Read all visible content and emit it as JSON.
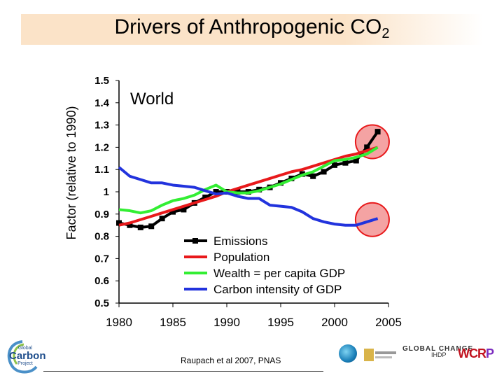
{
  "slide": {
    "title_main": "Drivers of Anthropogenic CO",
    "title_sub": "2",
    "citation": "Raupach et al 2007, PNAS"
  },
  "logos": {
    "gcp_small": "Global",
    "gcp_big": "Carbon",
    "gcp_tag": "Project",
    "global_change": "GLOBAL CHANGE",
    "ihdp": "IHDP",
    "wcrp_left": "WCR",
    "wcrp_right": "P"
  },
  "chart_data": {
    "type": "line",
    "annotation": "World",
    "ylabel": "Factor (relative to 1990)",
    "xlabel": "",
    "xlim": [
      1980,
      2005
    ],
    "ylim": [
      0.5,
      1.5
    ],
    "x_ticks": [
      "1980",
      "1985",
      "1990",
      "1995",
      "2000",
      "2005"
    ],
    "x_tick_values": [
      1980,
      1985,
      1990,
      1995,
      2000,
      2005
    ],
    "y_ticks": [
      "0.5",
      "0.6",
      "0.7",
      "0.8",
      "0.9",
      "1",
      "1.1",
      "1.2",
      "1.3",
      "1.4",
      "1.5"
    ],
    "y_tick_values": [
      0.5,
      0.6,
      0.7,
      0.8,
      0.9,
      1.0,
      1.1,
      1.2,
      1.3,
      1.4,
      1.5
    ],
    "grid": false,
    "legend_position": "lower-right",
    "x": [
      1980,
      1981,
      1982,
      1983,
      1984,
      1985,
      1986,
      1987,
      1988,
      1989,
      1990,
      1991,
      1992,
      1993,
      1994,
      1995,
      1996,
      1997,
      1998,
      1999,
      2000,
      2001,
      2002,
      2003,
      2004
    ],
    "series": [
      {
        "name": "Emissions",
        "color": "#000000",
        "markers": true,
        "values": [
          0.86,
          0.85,
          0.84,
          0.845,
          0.88,
          0.91,
          0.92,
          0.95,
          0.975,
          1.0,
          1.0,
          1.0,
          1.0,
          1.01,
          1.02,
          1.04,
          1.06,
          1.08,
          1.07,
          1.09,
          1.12,
          1.13,
          1.14,
          1.2,
          1.27
        ]
      },
      {
        "name": "Population",
        "color": "#e8191b",
        "markers": false,
        "values": [
          0.85,
          0.86,
          0.875,
          0.89,
          0.905,
          0.92,
          0.935,
          0.95,
          0.965,
          0.98,
          1.0,
          1.015,
          1.03,
          1.045,
          1.06,
          1.075,
          1.09,
          1.1,
          1.115,
          1.13,
          1.145,
          1.16,
          1.17,
          1.185,
          1.2
        ]
      },
      {
        "name": "Wealth = per capita GDP",
        "color": "#33ee33",
        "markers": false,
        "values": [
          0.92,
          0.915,
          0.905,
          0.915,
          0.94,
          0.96,
          0.97,
          0.985,
          1.01,
          1.03,
          1.0,
          0.995,
          0.995,
          1.005,
          1.02,
          1.035,
          1.055,
          1.075,
          1.09,
          1.115,
          1.14,
          1.145,
          1.155,
          1.17,
          1.2
        ]
      },
      {
        "name": "Carbon intensity of GDP",
        "color": "#2233dd",
        "markers": false,
        "values": [
          1.11,
          1.07,
          1.055,
          1.04,
          1.04,
          1.03,
          1.025,
          1.02,
          1.005,
          0.99,
          0.995,
          0.98,
          0.97,
          0.97,
          0.94,
          0.935,
          0.93,
          0.91,
          0.88,
          0.865,
          0.855,
          0.85,
          0.85,
          0.865,
          0.88
        ]
      }
    ],
    "highlights": [
      {
        "x": 2003.5,
        "y": 1.225,
        "color": "#e8191b",
        "fill": "#f4a3a3"
      },
      {
        "x": 2003.5,
        "y": 0.875,
        "color": "#e8191b",
        "fill": "#f4a3a3"
      }
    ]
  }
}
